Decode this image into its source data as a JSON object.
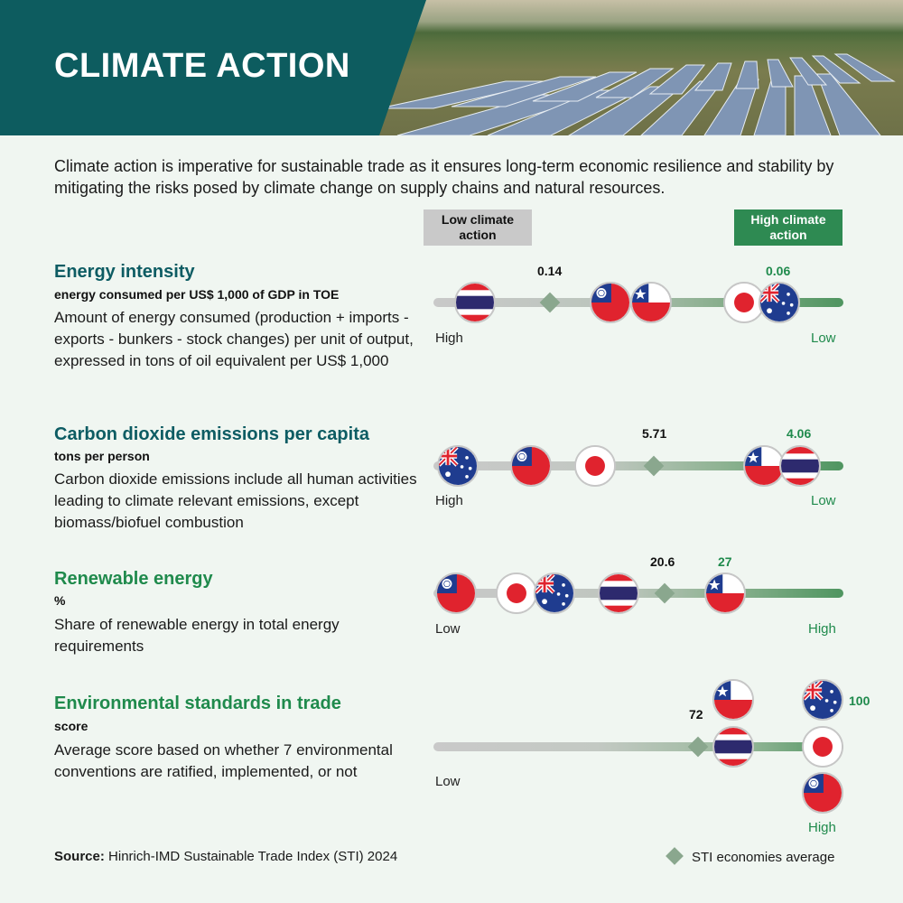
{
  "header": {
    "title": "CLIMATE ACTION",
    "band_color": "#0d5c5f",
    "photo": "solar-panel-field"
  },
  "intro": "Climate action is imperative for sustainable trade as it ensures long-term economic resilience and stability by mitigating the risks posed by climate change on supply chains and natural resources.",
  "scale": {
    "low_label": "Low climate action",
    "high_label": "High climate action",
    "low_color": "#c9c9c9",
    "high_color": "#2e8a52"
  },
  "metrics": [
    {
      "title": "Energy intensity",
      "unit": "energy consumed per US$ 1,000 of GDP in TOE",
      "description": "Amount of energy consumed (production + imports - exports - bunkers - stock changes) per unit of output, expressed in tons of oil equivalent per US$ 1,000",
      "start_label": "High",
      "end_label": "Low",
      "average": "0.14",
      "best": "0.06",
      "flags_order": [
        "thailand",
        "taiwan",
        "chile",
        "japan",
        "australia"
      ]
    },
    {
      "title": "Carbon dioxide emissions per capita",
      "unit": "tons per person",
      "description": "Carbon dioxide emissions include all human activities leading to climate relevant emissions, except biomass/biofuel combustion",
      "start_label": "High",
      "end_label": "Low",
      "average": "5.71",
      "best": "4.06",
      "flags_order": [
        "australia",
        "taiwan",
        "japan",
        "chile",
        "thailand"
      ]
    },
    {
      "title": "Renewable energy",
      "unit": "%",
      "description": "Share of renewable energy in total energy requirements",
      "start_label": "Low",
      "end_label": "High",
      "average": "20.6",
      "best": "27",
      "flags_order": [
        "taiwan",
        "japan",
        "australia",
        "thailand",
        "chile"
      ]
    },
    {
      "title": "Environmental standards in trade",
      "unit": "score",
      "description": "Average score based on whether 7 environmental conventions are ratified, implemented, or not",
      "start_label": "Low",
      "end_label": "High",
      "average": "72",
      "best": "100",
      "flags_order": [
        "chile",
        "thailand",
        "australia",
        "japan",
        "taiwan"
      ]
    }
  ],
  "footer": {
    "source_bold": "Source:",
    "source_text": "Hinrich-IMD Sustainable Trade Index (STI) 2024",
    "legend_label": "STI economies average",
    "average_marker_color": "#8aa78e"
  }
}
